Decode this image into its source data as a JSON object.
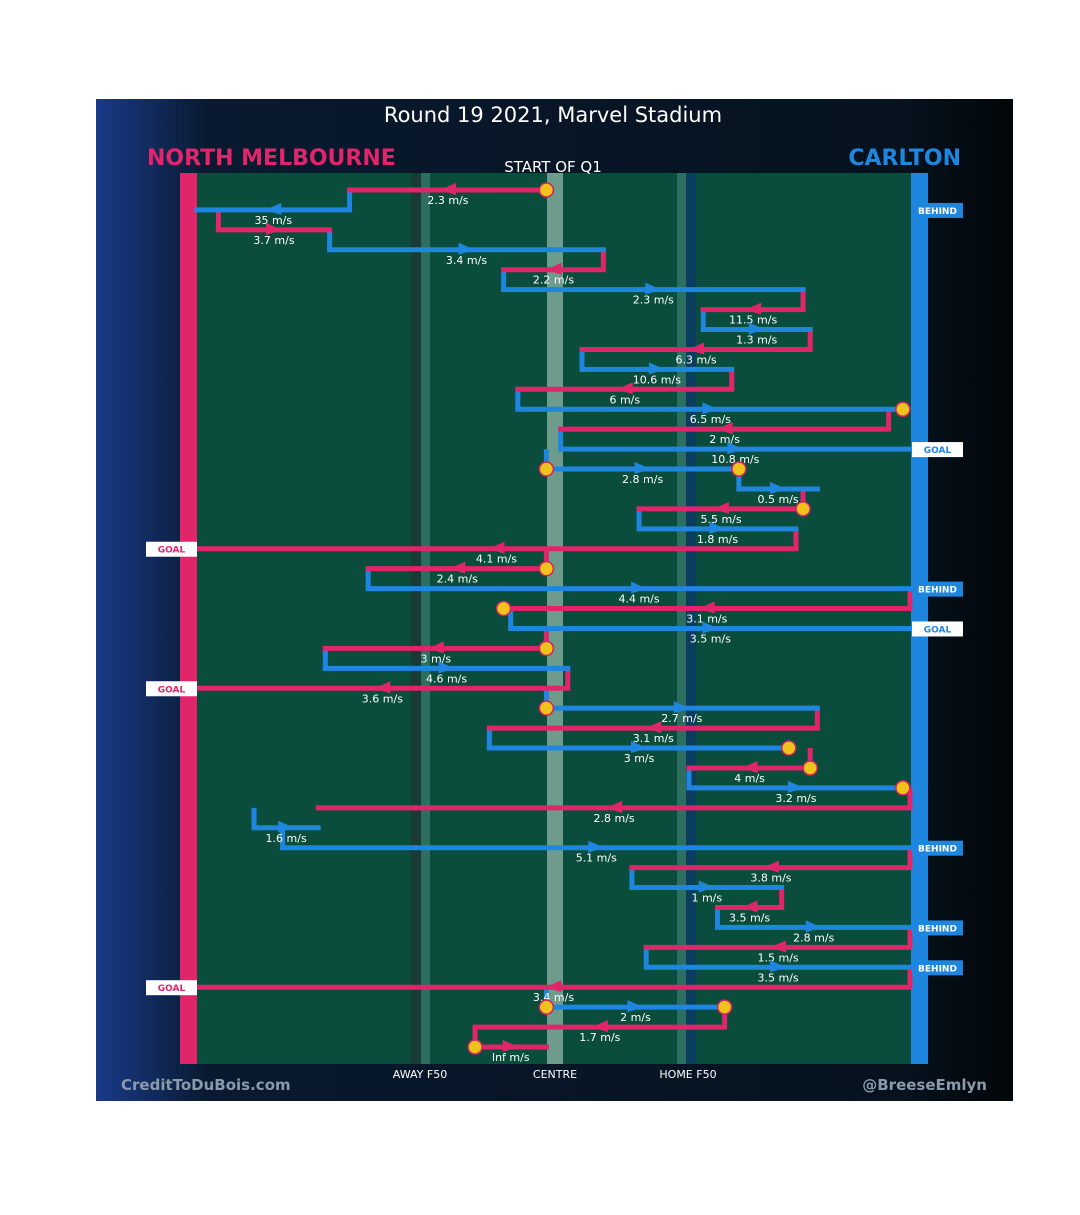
{
  "title": "Round 19 2021, Marvel Stadium",
  "teams": {
    "away": {
      "name": "NORTH MELBOURNE",
      "color": "#e0256b"
    },
    "home": {
      "name": "CARLTON",
      "color": "#1f86e0"
    }
  },
  "period_label": "START OF Q1",
  "axis_labels": {
    "away_f50": "AWAY F50",
    "centre": "CENTRE",
    "home_f50": "HOME F50"
  },
  "footer": {
    "left": "CreditToDuBois.com",
    "right": "@BreeseEmlyn"
  },
  "chart_data": {
    "type": "line",
    "description_axis": "x = ground position across width of field (0 = away goal line, 1 = home goal line); rows run top to bottom in chain order",
    "chains": [
      {
        "team": "away",
        "start": 0.49,
        "end": 0.214,
        "speed": "2.3 m/s",
        "start_marker": "ball_up"
      },
      {
        "team": "home",
        "start": 0.214,
        "end": 0.0,
        "speed": "35 m/s",
        "end_result": "BEHIND"
      },
      {
        "team": "away",
        "start": 0.03,
        "end": 0.186,
        "speed": "3.7 m/s"
      },
      {
        "team": "home",
        "start": 0.186,
        "end": 0.57,
        "speed": "3.4 m/s"
      },
      {
        "team": "away",
        "start": 0.57,
        "end": 0.43,
        "speed": "2.2 m/s"
      },
      {
        "team": "home",
        "start": 0.43,
        "end": 0.85,
        "speed": "2.3 m/s"
      },
      {
        "team": "away",
        "start": 0.85,
        "end": 0.71,
        "speed": "11.5 m/s"
      },
      {
        "team": "home",
        "start": 0.71,
        "end": 0.86,
        "speed": "1.3 m/s"
      },
      {
        "team": "away",
        "start": 0.86,
        "end": 0.54,
        "speed": "6.3 m/s"
      },
      {
        "team": "home",
        "start": 0.54,
        "end": 0.75,
        "speed": "10.6 m/s"
      },
      {
        "team": "away",
        "start": 0.75,
        "end": 0.45,
        "speed": "6 m/s"
      },
      {
        "team": "home",
        "start": 0.45,
        "end": 0.99,
        "speed": "6.5 m/s",
        "end_marker": "ball_up"
      },
      {
        "team": "away",
        "start": 0.97,
        "end": 0.51,
        "speed": "2 m/s"
      },
      {
        "team": "home",
        "start": 0.51,
        "end": 1.0,
        "speed": "10.8 m/s",
        "end_result": "GOAL"
      },
      {
        "team": "home",
        "start": 0.49,
        "end": 0.76,
        "speed": "2.8 m/s",
        "start_marker": "ball_up",
        "end_marker": "ball_up"
      },
      {
        "team": "home",
        "start": 0.76,
        "end": 0.87,
        "speed": "0.5 m/s"
      },
      {
        "team": "away",
        "start": 0.85,
        "end": 0.62,
        "speed": "5.5 m/s",
        "start_marker": "ball_up"
      },
      {
        "team": "home",
        "start": 0.62,
        "end": 0.84,
        "speed": "1.8 m/s"
      },
      {
        "team": "away",
        "start": 0.84,
        "end": 0.0,
        "speed": "4.1 m/s",
        "end_result": "GOAL"
      },
      {
        "team": "away",
        "start": 0.49,
        "end": 0.24,
        "speed": "2.4 m/s",
        "start_marker": "ball_up"
      },
      {
        "team": "home",
        "start": 0.24,
        "end": 1.0,
        "speed": "4.4 m/s",
        "end_result": "BEHIND"
      },
      {
        "team": "away",
        "start": 1.0,
        "end": 0.43,
        "speed": "3.1 m/s",
        "end_marker": "ball_up"
      },
      {
        "team": "home",
        "start": 0.44,
        "end": 1.0,
        "speed": "3.5 m/s",
        "end_result": "GOAL"
      },
      {
        "team": "away",
        "start": 0.49,
        "end": 0.18,
        "speed": "3 m/s",
        "start_marker": "ball_up"
      },
      {
        "team": "home",
        "start": 0.18,
        "end": 0.52,
        "speed": "4.6 m/s"
      },
      {
        "team": "away",
        "start": 0.52,
        "end": 0.0,
        "speed": "3.6 m/s",
        "end_result": "GOAL"
      },
      {
        "team": "home",
        "start": 0.49,
        "end": 0.87,
        "speed": "2.7 m/s",
        "start_marker": "ball_up"
      },
      {
        "team": "away",
        "start": 0.87,
        "end": 0.41,
        "speed": "3.1 m/s"
      },
      {
        "team": "home",
        "start": 0.41,
        "end": 0.83,
        "speed": "3 m/s",
        "end_marker": "ball_up"
      },
      {
        "team": "away",
        "start": 0.86,
        "end": 0.69,
        "speed": "4 m/s",
        "start_marker": "ball_up"
      },
      {
        "team": "home",
        "start": 0.69,
        "end": 0.99,
        "speed": "3.2 m/s",
        "end_marker": "ball_up"
      },
      {
        "team": "away",
        "start": 1.0,
        "end": 0.17,
        "speed": "2.8 m/s"
      },
      {
        "team": "home",
        "start": 0.08,
        "end": 0.17,
        "speed": "1.6 m/s"
      },
      {
        "team": "home",
        "start": 0.12,
        "end": 1.0,
        "speed": "5.1 m/s",
        "end_result": "BEHIND"
      },
      {
        "team": "away",
        "start": 1.0,
        "end": 0.61,
        "speed": "3.8 m/s"
      },
      {
        "team": "home",
        "start": 0.61,
        "end": 0.82,
        "speed": "1 m/s"
      },
      {
        "team": "away",
        "start": 0.82,
        "end": 0.73,
        "speed": "3.5 m/s"
      },
      {
        "team": "home",
        "start": 0.73,
        "end": 1.0,
        "speed": "2.8 m/s",
        "end_result": "BEHIND"
      },
      {
        "team": "away",
        "start": 1.0,
        "end": 0.63,
        "speed": "1.5 m/s"
      },
      {
        "team": "home",
        "start": 0.63,
        "end": 1.0,
        "speed": "3.5 m/s",
        "end_result": "BEHIND"
      },
      {
        "team": "away",
        "start": 1.0,
        "end": 0.0,
        "speed": "3.4 m/s",
        "end_result": "GOAL"
      },
      {
        "team": "home",
        "start": 0.49,
        "end": 0.74,
        "speed": "2 m/s",
        "start_marker": "ball_up",
        "end_marker": "ball_up"
      },
      {
        "team": "away",
        "start": 0.74,
        "end": 0.39,
        "speed": "1.7 m/s"
      },
      {
        "team": "away",
        "start": 0.39,
        "end": 0.49,
        "speed": "Inf m/s",
        "start_marker": "ball_up"
      }
    ]
  }
}
